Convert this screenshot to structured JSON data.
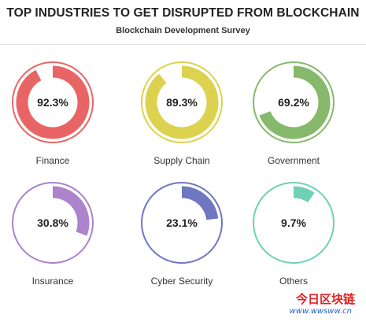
{
  "header": {
    "title": "TOP INDUSTRIES TO GET DISRUPTED FROM BLOCKCHAIN",
    "subtitle": "Blockchain Development Survey"
  },
  "chart_data": {
    "type": "donut-grid",
    "title": "TOP INDUSTRIES TO GET DISRUPTED FROM BLOCKCHAIN",
    "subtitle": "Blockchain Development Survey",
    "unit": "%",
    "items": [
      {
        "label": "Finance",
        "value": 92.3,
        "value_label": "92.3%",
        "color": "#e96565"
      },
      {
        "label": "Supply Chain",
        "value": 89.3,
        "value_label": "89.3%",
        "color": "#dcd24f"
      },
      {
        "label": "Government",
        "value": 69.2,
        "value_label": "69.2%",
        "color": "#86b96b"
      },
      {
        "label": "Insurance",
        "value": 30.8,
        "value_label": "30.8%",
        "color": "#ad83cc"
      },
      {
        "label": "Cyber Security",
        "value": 23.1,
        "value_label": "23.1%",
        "color": "#6f77c3"
      },
      {
        "label": "Others",
        "value": 9.7,
        "value_label": "9.7%",
        "color": "#6fd0b5"
      }
    ]
  },
  "watermark": {
    "text": "今日区块链",
    "url": "www.wwsww.cn"
  }
}
